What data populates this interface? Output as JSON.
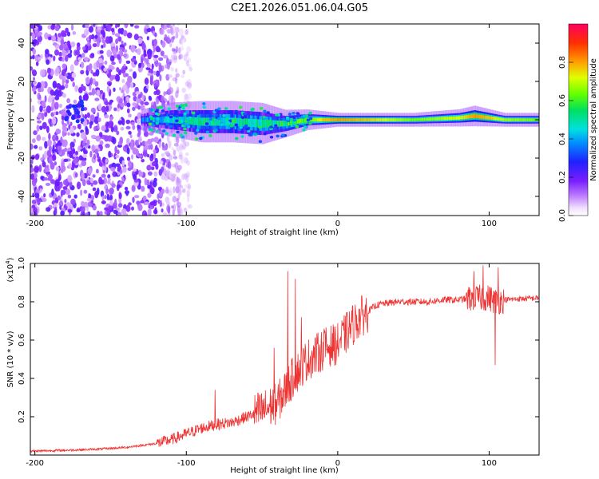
{
  "title": "C2E1.2026.051.06.04.G05",
  "chart_data": [
    {
      "type": "heatmap",
      "xlabel": "Height of straight line (km)",
      "ylabel": "Frequency (Hz)",
      "xlim": [
        -203,
        133
      ],
      "ylim": [
        -50,
        50
      ],
      "xticks": [
        -200,
        -100,
        0,
        100
      ],
      "yticks": [
        -40,
        -20,
        0,
        20,
        40
      ],
      "colorbar": {
        "label": "Normalized spectral amplitude",
        "range": [
          0,
          1
        ],
        "ticks": [
          "0.0",
          "0.2",
          "0.4",
          "0.6",
          "0.8"
        ],
        "tick_values": [
          0,
          0.2,
          0.4,
          0.6,
          0.8
        ]
      },
      "noise_region_x": [
        -203,
        -105
      ],
      "signal_band": {
        "x": [
          -130,
          -110,
          -90,
          -70,
          -50,
          -35,
          -20,
          -10,
          0,
          20,
          50,
          80,
          90,
          100,
          110,
          133
        ],
        "center_hz": [
          0,
          0,
          -1,
          -1,
          -2,
          -2,
          0,
          0,
          0,
          0,
          0,
          1,
          2,
          1,
          0,
          0
        ],
        "halfwidth_hz": [
          3,
          5,
          6,
          6,
          6,
          4,
          3,
          2.5,
          2,
          2,
          2,
          2.5,
          3,
          2.5,
          2,
          2
        ],
        "peak_amplitude": [
          0.3,
          0.45,
          0.5,
          0.5,
          0.5,
          0.55,
          0.7,
          0.9,
          0.95,
          0.9,
          0.75,
          0.85,
          0.95,
          0.9,
          0.8,
          0.75
        ]
      }
    },
    {
      "type": "line",
      "xlabel": "Height of straight line (km)",
      "ylabel": "SNR (10 * v/v)",
      "scale_label": "(x10",
      "scale_exp": "4",
      "xlim": [
        -203,
        133
      ],
      "ylim": [
        0,
        1.0
      ],
      "xticks": [
        -200,
        -100,
        0,
        100
      ],
      "yticks": [
        "0.2",
        "0.4",
        "0.6",
        "0.8",
        "1.0"
      ],
      "ytick_values": [
        0.2,
        0.4,
        0.6,
        0.8,
        1.0
      ],
      "color": "#ee3333",
      "series": [
        {
          "name": "SNR",
          "x": [
            -203,
            -180,
            -160,
            -140,
            -120,
            -110,
            -100,
            -90,
            -80,
            -70,
            -60,
            -50,
            -40,
            -35,
            -30,
            -25,
            -20,
            -15,
            -10,
            -5,
            0,
            5,
            10,
            15,
            20,
            25,
            30,
            40,
            50,
            60,
            70,
            80,
            90,
            95,
            100,
            105,
            110,
            120,
            133
          ],
          "y": [
            0.02,
            0.025,
            0.03,
            0.04,
            0.06,
            0.08,
            0.11,
            0.14,
            0.16,
            0.17,
            0.2,
            0.23,
            0.27,
            0.33,
            0.4,
            0.45,
            0.5,
            0.52,
            0.55,
            0.57,
            0.58,
            0.63,
            0.68,
            0.72,
            0.75,
            0.78,
            0.79,
            0.8,
            0.8,
            0.8,
            0.81,
            0.81,
            0.82,
            0.82,
            0.82,
            0.8,
            0.81,
            0.815,
            0.82
          ],
          "spikes": [
            {
              "x": -81,
              "y": 0.34
            },
            {
              "x": -42,
              "y": 0.56
            },
            {
              "x": -33,
              "y": 0.96
            },
            {
              "x": -28,
              "y": 0.92
            },
            {
              "x": -24,
              "y": 0.72
            },
            {
              "x": -9,
              "y": 0.66
            },
            {
              "x": 90,
              "y": 0.96
            },
            {
              "x": 96,
              "y": 0.99
            },
            {
              "x": 104,
              "y": 0.47
            },
            {
              "x": 106,
              "y": 0.98
            }
          ]
        }
      ]
    }
  ]
}
